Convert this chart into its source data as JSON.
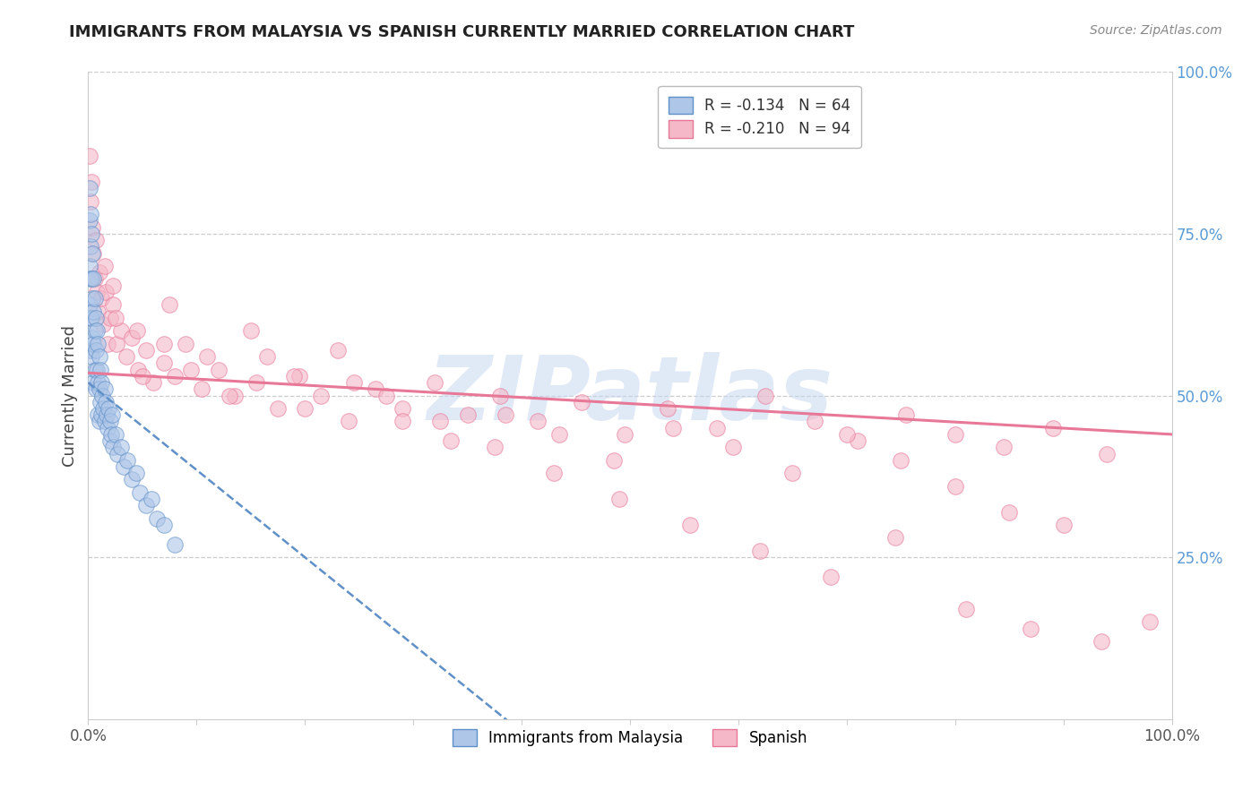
{
  "title": "IMMIGRANTS FROM MALAYSIA VS SPANISH CURRENTLY MARRIED CORRELATION CHART",
  "source_text": "Source: ZipAtlas.com",
  "ylabel": "Currently Married",
  "xmin": 0.0,
  "xmax": 1.0,
  "ymin": 0.0,
  "ymax": 1.0,
  "ytick_values": [
    0.25,
    0.5,
    0.75,
    1.0
  ],
  "ytick_labels": [
    "25.0%",
    "50.0%",
    "75.0%",
    "100.0%"
  ],
  "xtick_values": [
    0.0,
    0.1,
    0.2,
    0.3,
    0.4,
    0.5,
    0.6,
    0.7,
    0.8,
    0.9,
    1.0
  ],
  "xtick_labels_shown": [
    "0.0%",
    "",
    "",
    "",
    "",
    "",
    "",
    "",
    "",
    "",
    "100.0%"
  ],
  "legend_r1": "R = -0.134",
  "legend_n1": "N = 64",
  "legend_r2": "R = -0.210",
  "legend_n2": "N = 94",
  "color_blue_fill": "#aec6e8",
  "color_blue_edge": "#6090c8",
  "color_pink_fill": "#f4b8c8",
  "color_pink_edge": "#e87898",
  "color_line_blue": "#6090c8",
  "color_line_pink": "#e87898",
  "watermark_color": "#c8d8f0",
  "background_color": "#ffffff",
  "grid_color": "#cccccc",
  "title_color": "#222222",
  "source_color": "#888888",
  "ylabel_color": "#444444",
  "ytick_color": "#5b9bd5",
  "xtick_color": "#555555",
  "r_value_color": "#4472c4",
  "scatter_size": 160,
  "scatter_alpha": 0.6,
  "blue_line_intercept": 0.52,
  "blue_line_slope": -1.35,
  "pink_line_intercept": 0.535,
  "pink_line_slope": -0.095,
  "blue_x": [
    0.001,
    0.001,
    0.001,
    0.001,
    0.002,
    0.002,
    0.002,
    0.002,
    0.002,
    0.003,
    0.003,
    0.003,
    0.003,
    0.004,
    0.004,
    0.004,
    0.005,
    0.005,
    0.005,
    0.005,
    0.006,
    0.006,
    0.006,
    0.007,
    0.007,
    0.007,
    0.008,
    0.008,
    0.009,
    0.009,
    0.009,
    0.01,
    0.01,
    0.01,
    0.011,
    0.011,
    0.012,
    0.012,
    0.013,
    0.014,
    0.015,
    0.015,
    0.016,
    0.017,
    0.018,
    0.019,
    0.02,
    0.02,
    0.021,
    0.022,
    0.023,
    0.025,
    0.027,
    0.03,
    0.033,
    0.036,
    0.04,
    0.044,
    0.048,
    0.053,
    0.058,
    0.063,
    0.07,
    0.08
  ],
  "blue_y": [
    0.82,
    0.77,
    0.7,
    0.64,
    0.78,
    0.73,
    0.68,
    0.62,
    0.57,
    0.75,
    0.68,
    0.62,
    0.56,
    0.72,
    0.65,
    0.59,
    0.68,
    0.63,
    0.58,
    0.52,
    0.65,
    0.6,
    0.54,
    0.62,
    0.57,
    0.51,
    0.6,
    0.54,
    0.58,
    0.52,
    0.47,
    0.56,
    0.51,
    0.46,
    0.54,
    0.49,
    0.52,
    0.47,
    0.5,
    0.48,
    0.51,
    0.46,
    0.49,
    0.47,
    0.45,
    0.48,
    0.46,
    0.43,
    0.44,
    0.47,
    0.42,
    0.44,
    0.41,
    0.42,
    0.39,
    0.4,
    0.37,
    0.38,
    0.35,
    0.33,
    0.34,
    0.31,
    0.3,
    0.27
  ],
  "pink_x": [
    0.001,
    0.002,
    0.003,
    0.004,
    0.005,
    0.006,
    0.007,
    0.008,
    0.009,
    0.01,
    0.012,
    0.014,
    0.016,
    0.018,
    0.02,
    0.023,
    0.026,
    0.03,
    0.035,
    0.04,
    0.046,
    0.053,
    0.06,
    0.07,
    0.08,
    0.09,
    0.105,
    0.12,
    0.135,
    0.155,
    0.175,
    0.195,
    0.215,
    0.24,
    0.265,
    0.29,
    0.32,
    0.35,
    0.38,
    0.415,
    0.455,
    0.495,
    0.535,
    0.58,
    0.625,
    0.67,
    0.71,
    0.755,
    0.8,
    0.845,
    0.89,
    0.94,
    0.05,
    0.07,
    0.095,
    0.13,
    0.165,
    0.2,
    0.245,
    0.29,
    0.335,
    0.385,
    0.435,
    0.485,
    0.54,
    0.595,
    0.65,
    0.7,
    0.75,
    0.8,
    0.85,
    0.9,
    0.023,
    0.045,
    0.075,
    0.11,
    0.15,
    0.19,
    0.23,
    0.275,
    0.325,
    0.375,
    0.43,
    0.49,
    0.555,
    0.62,
    0.685,
    0.745,
    0.81,
    0.87,
    0.935,
    0.98,
    0.015,
    0.025
  ],
  "pink_y": [
    0.87,
    0.8,
    0.83,
    0.76,
    0.72,
    0.68,
    0.74,
    0.66,
    0.63,
    0.69,
    0.65,
    0.61,
    0.66,
    0.58,
    0.62,
    0.64,
    0.58,
    0.6,
    0.56,
    0.59,
    0.54,
    0.57,
    0.52,
    0.55,
    0.53,
    0.58,
    0.51,
    0.54,
    0.5,
    0.52,
    0.48,
    0.53,
    0.5,
    0.46,
    0.51,
    0.48,
    0.52,
    0.47,
    0.5,
    0.46,
    0.49,
    0.44,
    0.48,
    0.45,
    0.5,
    0.46,
    0.43,
    0.47,
    0.44,
    0.42,
    0.45,
    0.41,
    0.53,
    0.58,
    0.54,
    0.5,
    0.56,
    0.48,
    0.52,
    0.46,
    0.43,
    0.47,
    0.44,
    0.4,
    0.45,
    0.42,
    0.38,
    0.44,
    0.4,
    0.36,
    0.32,
    0.3,
    0.67,
    0.6,
    0.64,
    0.56,
    0.6,
    0.53,
    0.57,
    0.5,
    0.46,
    0.42,
    0.38,
    0.34,
    0.3,
    0.26,
    0.22,
    0.28,
    0.17,
    0.14,
    0.12,
    0.15,
    0.7,
    0.62
  ]
}
